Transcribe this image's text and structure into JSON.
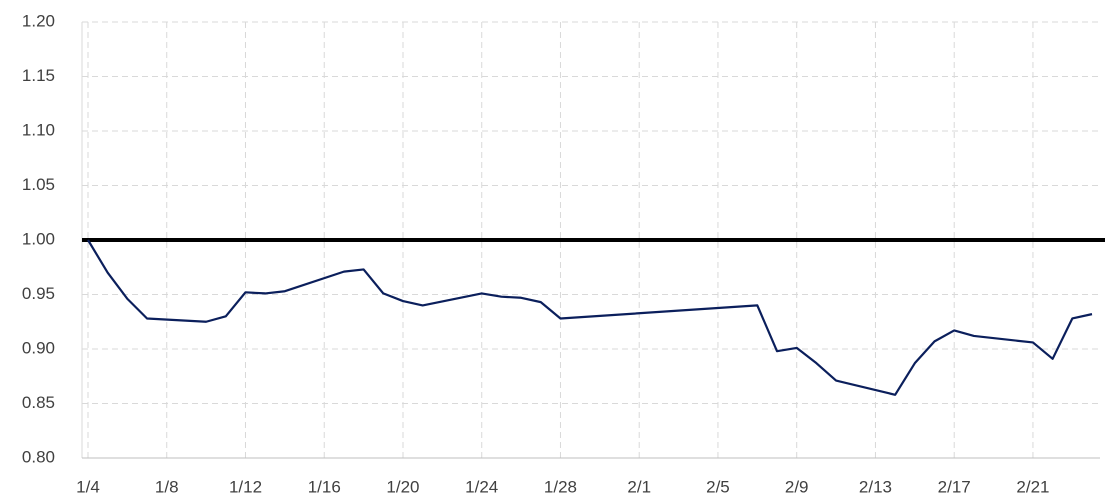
{
  "chart_data": {
    "type": "line",
    "x": [
      "1/4",
      "1/5",
      "1/6",
      "1/7",
      "1/10",
      "1/11",
      "1/12",
      "1/13",
      "1/14",
      "1/17",
      "1/18",
      "1/19",
      "1/20",
      "1/21",
      "1/24",
      "1/25",
      "1/26",
      "1/27",
      "1/28",
      "2/7",
      "2/8",
      "2/9",
      "2/10",
      "2/11",
      "2/14",
      "2/15",
      "2/16",
      "2/17",
      "2/18",
      "2/21",
      "2/22",
      "2/23",
      "2/24"
    ],
    "series": [
      {
        "color": "#0b1f5c",
        "values": [
          1.0,
          0.97,
          0.946,
          0.928,
          0.925,
          0.93,
          0.952,
          0.951,
          0.953,
          0.971,
          0.973,
          0.951,
          0.944,
          0.94,
          0.951,
          0.948,
          0.947,
          0.943,
          0.928,
          0.94,
          0.898,
          0.901,
          0.887,
          0.871,
          0.858,
          0.887,
          0.907,
          0.917,
          0.912,
          0.906,
          0.891,
          0.928,
          0.932
        ]
      }
    ],
    "reference_line": 1,
    "xlim": [
      "1/4",
      "2/24"
    ],
    "xticks": [
      "1/4",
      "1/8",
      "1/12",
      "1/16",
      "1/20",
      "1/24",
      "1/28",
      "2/1",
      "2/5",
      "2/9",
      "2/13",
      "2/17",
      "2/21"
    ],
    "ylim": [
      0.8,
      1.2
    ],
    "yticks": [
      {
        "value": 0.8,
        "label": "0.80"
      },
      0.85,
      {
        "value": 0.9,
        "label": "0.90"
      },
      0.95,
      {
        "value": 1.0,
        "label": "1.00"
      },
      1.05,
      {
        "value": 1.1,
        "label": "1.10"
      },
      1.15,
      {
        "value": 1.2,
        "label": "1.20"
      }
    ],
    "grid": true
  }
}
